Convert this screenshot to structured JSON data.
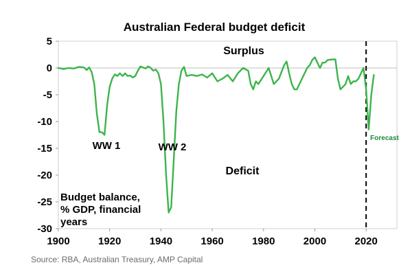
{
  "chart_data": {
    "type": "line",
    "title": "Australian Federal budget deficit",
    "xlim": [
      1900,
      2032
    ],
    "ylim": [
      -30,
      5
    ],
    "x_ticks": [
      "1900",
      "1920",
      "1940",
      "1960",
      "1980",
      "2000",
      "2020"
    ],
    "y_ticks": [
      "5",
      "0",
      "-5",
      "-10",
      "-15",
      "-20",
      "-25",
      "-30"
    ],
    "grid": false,
    "series": [
      {
        "color": "#3cb44b",
        "points": [
          [
            1900,
            0
          ],
          [
            1902,
            -0.2
          ],
          [
            1904,
            0
          ],
          [
            1906,
            -0.1
          ],
          [
            1908,
            0.2
          ],
          [
            1910,
            0.1
          ],
          [
            1911,
            -0.4
          ],
          [
            1912,
            0.1
          ],
          [
            1913,
            -0.8
          ],
          [
            1914,
            -3
          ],
          [
            1915,
            -8.5
          ],
          [
            1916,
            -12
          ],
          [
            1917,
            -12
          ],
          [
            1918,
            -12.5
          ],
          [
            1919,
            -7
          ],
          [
            1920,
            -3.5
          ],
          [
            1921,
            -2
          ],
          [
            1922,
            -1.2
          ],
          [
            1923,
            -1.5
          ],
          [
            1924,
            -1
          ],
          [
            1925,
            -1.5
          ],
          [
            1926,
            -1
          ],
          [
            1927,
            -1.5
          ],
          [
            1928,
            -1.4
          ],
          [
            1929,
            -1.8
          ],
          [
            1930,
            -1.5
          ],
          [
            1931,
            -0.5
          ],
          [
            1932,
            0.3
          ],
          [
            1933,
            0.1
          ],
          [
            1934,
            -0.1
          ],
          [
            1935,
            0.3
          ],
          [
            1936,
            0
          ],
          [
            1937,
            -0.5
          ],
          [
            1938,
            -0.3
          ],
          [
            1939,
            -1
          ],
          [
            1940,
            -3
          ],
          [
            1941,
            -10
          ],
          [
            1942,
            -20
          ],
          [
            1943,
            -27
          ],
          [
            1944,
            -26
          ],
          [
            1945,
            -17
          ],
          [
            1946,
            -8
          ],
          [
            1947,
            -3
          ],
          [
            1948,
            -0.5
          ],
          [
            1949,
            0.2
          ],
          [
            1950,
            -1.5
          ],
          [
            1952,
            -1.3
          ],
          [
            1954,
            -1.5
          ],
          [
            1956,
            -1.2
          ],
          [
            1958,
            -1.8
          ],
          [
            1960,
            -1
          ],
          [
            1962,
            -2.5
          ],
          [
            1964,
            -2
          ],
          [
            1966,
            -1.3
          ],
          [
            1968,
            -2.5
          ],
          [
            1970,
            -1
          ],
          [
            1972,
            0
          ],
          [
            1974,
            -0.5
          ],
          [
            1975,
            -3
          ],
          [
            1976,
            -4
          ],
          [
            1977,
            -2.5
          ],
          [
            1978,
            -3
          ],
          [
            1980,
            -1.5
          ],
          [
            1982,
            0
          ],
          [
            1984,
            -3
          ],
          [
            1986,
            -2
          ],
          [
            1988,
            0.5
          ],
          [
            1989,
            1.2
          ],
          [
            1990,
            -1
          ],
          [
            1991,
            -3
          ],
          [
            1992,
            -4
          ],
          [
            1993,
            -4
          ],
          [
            1995,
            -2
          ],
          [
            1997,
            0
          ],
          [
            1998,
            0.5
          ],
          [
            1999,
            1.5
          ],
          [
            2000,
            2
          ],
          [
            2001,
            1
          ],
          [
            2002,
            0
          ],
          [
            2003,
            1
          ],
          [
            2004,
            1
          ],
          [
            2005,
            1.5
          ],
          [
            2007,
            1.6
          ],
          [
            2008,
            1.6
          ],
          [
            2009,
            -2
          ],
          [
            2010,
            -4
          ],
          [
            2011,
            -3.5
          ],
          [
            2012,
            -3
          ],
          [
            2013,
            -1.5
          ],
          [
            2014,
            -3
          ],
          [
            2015,
            -2.5
          ],
          [
            2016,
            -2.5
          ],
          [
            2017,
            -2
          ],
          [
            2018,
            -1
          ],
          [
            2019,
            0
          ],
          [
            2020,
            -4
          ],
          [
            2021,
            -11.5
          ],
          [
            2022,
            -5
          ],
          [
            2023,
            -1.3
          ]
        ]
      }
    ],
    "annotations": {
      "surplus": "Surplus",
      "deficit": "Deficit",
      "ww1": "WW 1",
      "ww2": "WW 2",
      "forecast": "Forecast",
      "note": [
        "Budget balance,",
        "% GDP, financial",
        "years"
      ]
    },
    "forecast_marker_x": 2020
  },
  "source": "Source: RBA, Australian Treasury, AMP Capital"
}
